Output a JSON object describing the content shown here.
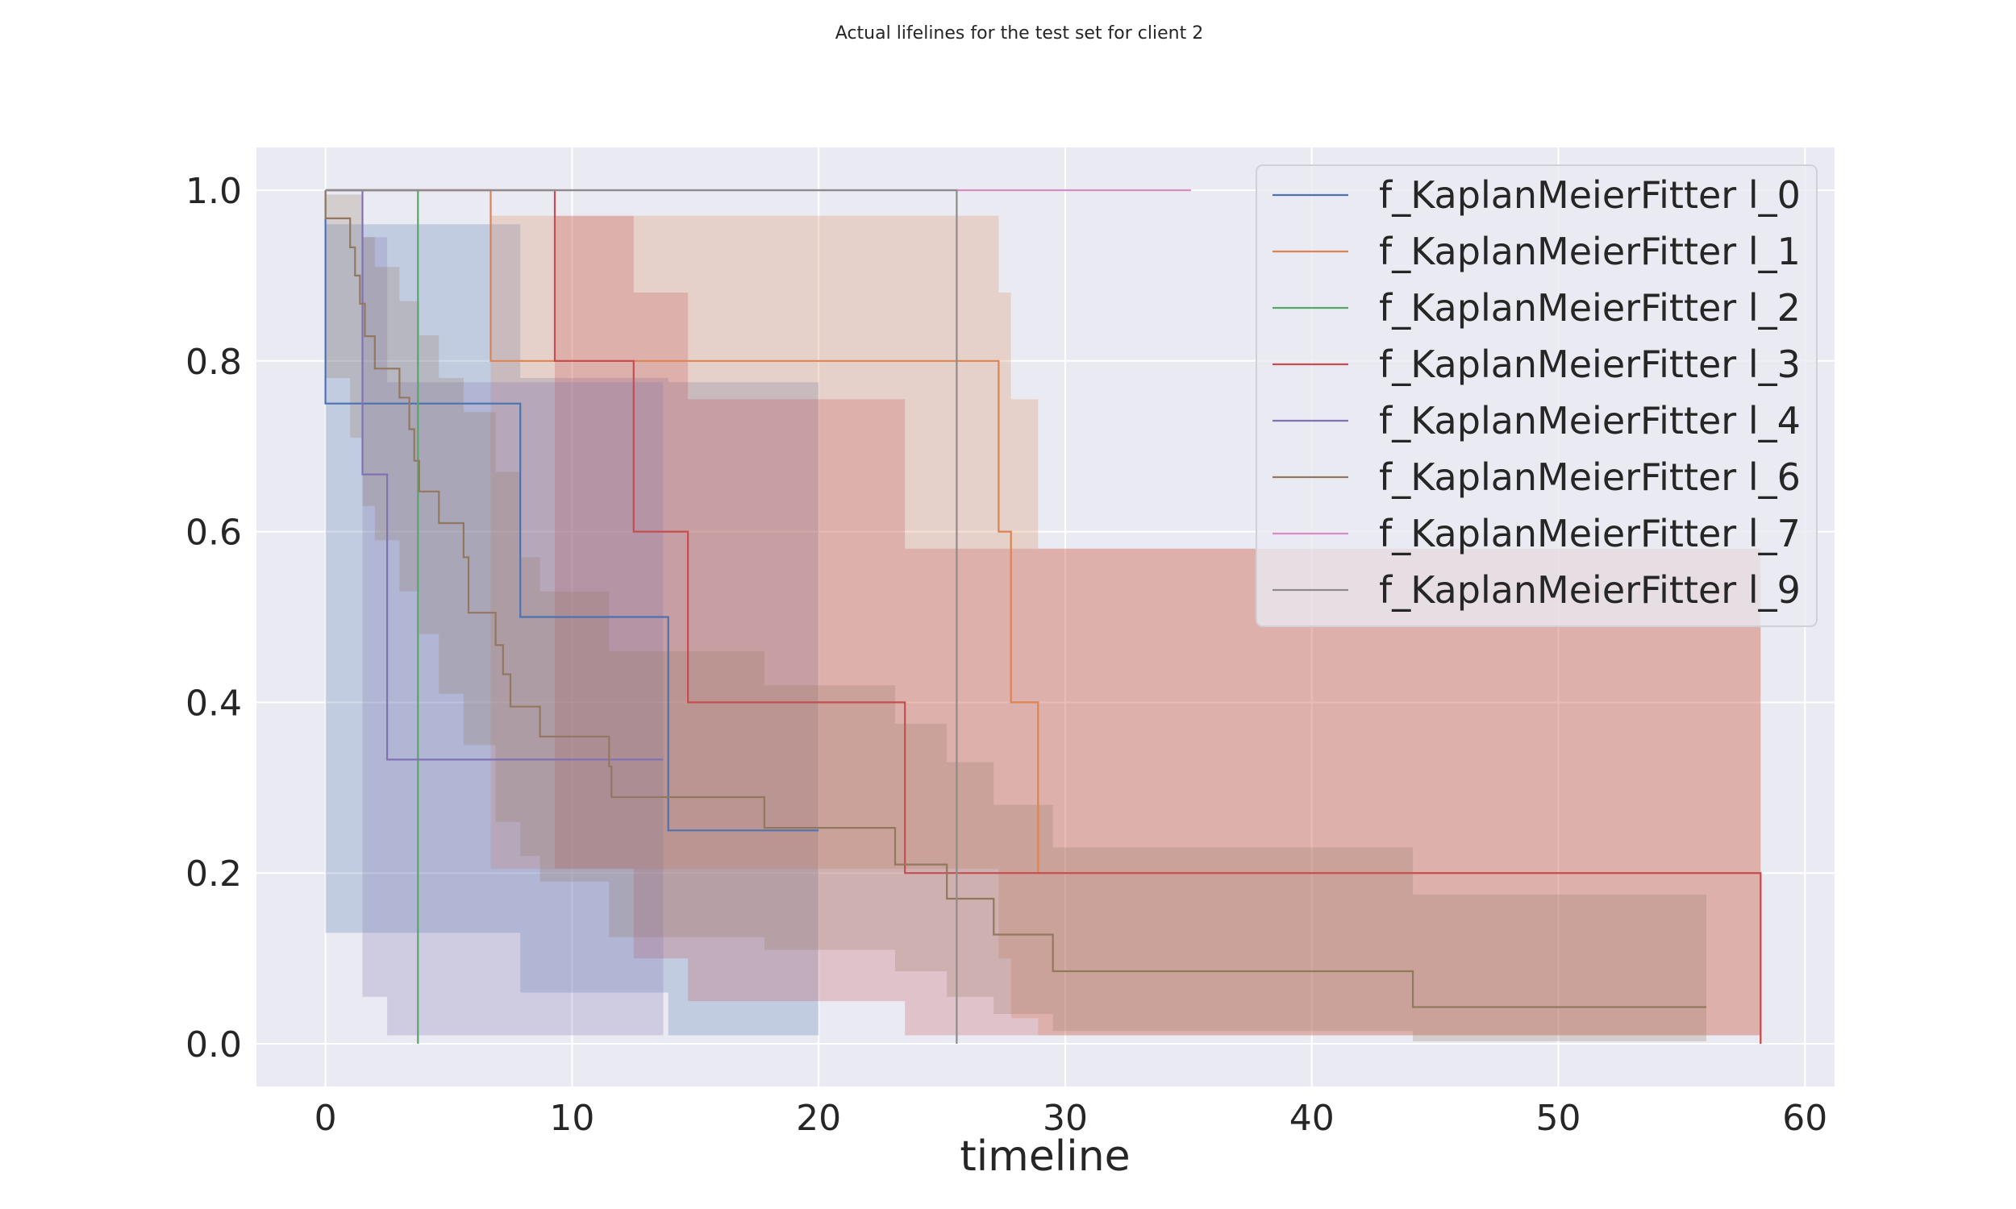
{
  "chart_data": {
    "type": "line",
    "title": "Actual lifelines for the test set for client 2",
    "xlabel": "timeline",
    "ylabel": "",
    "xlim": [
      -2.8,
      61.2
    ],
    "ylim": [
      -0.05,
      1.05
    ],
    "xticks": [
      0,
      10,
      20,
      30,
      40,
      50,
      60
    ],
    "yticks": [
      0.0,
      0.2,
      0.4,
      0.6,
      0.8,
      1.0
    ],
    "grid": true,
    "legend_position": "top-right",
    "series": [
      {
        "name": "f_KaplanMeierFitter l_0",
        "color": "#4c72b0",
        "points": [
          [
            0,
            1.0
          ],
          [
            0,
            0.75
          ],
          [
            7.9,
            0.75
          ],
          [
            7.9,
            0.5
          ],
          [
            13.9,
            0.5
          ],
          [
            13.9,
            0.25
          ],
          [
            20.0,
            0.25
          ]
        ],
        "ci_upper": [
          [
            0,
            0.96
          ],
          [
            7.9,
            0.96
          ],
          [
            7.9,
            0.78
          ],
          [
            13.9,
            0.78
          ],
          [
            13.9,
            0.775
          ],
          [
            20.0,
            0.775
          ]
        ],
        "ci_lower": [
          [
            0,
            0.13
          ],
          [
            7.9,
            0.13
          ],
          [
            7.9,
            0.06
          ],
          [
            13.9,
            0.06
          ],
          [
            13.9,
            0.01
          ],
          [
            20.0,
            0.01
          ]
        ]
      },
      {
        "name": "f_KaplanMeierFitter l_1",
        "color": "#dd8452",
        "points": [
          [
            0,
            1.0
          ],
          [
            6.7,
            1.0
          ],
          [
            6.7,
            0.8
          ],
          [
            27.3,
            0.8
          ],
          [
            27.3,
            0.6
          ],
          [
            27.8,
            0.6
          ],
          [
            27.8,
            0.4
          ],
          [
            28.9,
            0.4
          ],
          [
            28.9,
            0.2
          ],
          [
            58.2,
            0.2
          ],
          [
            58.2,
            0.0
          ]
        ],
        "ci_upper": [
          [
            6.7,
            0.97
          ],
          [
            27.3,
            0.97
          ],
          [
            27.3,
            0.88
          ],
          [
            27.8,
            0.88
          ],
          [
            27.8,
            0.755
          ],
          [
            28.9,
            0.755
          ],
          [
            28.9,
            0.58
          ],
          [
            58.2,
            0.58
          ]
        ],
        "ci_lower": [
          [
            6.7,
            0.205
          ],
          [
            27.3,
            0.205
          ],
          [
            27.3,
            0.1
          ],
          [
            27.8,
            0.1
          ],
          [
            27.8,
            0.03
          ],
          [
            28.9,
            0.03
          ],
          [
            28.9,
            0.01
          ],
          [
            58.2,
            0.01
          ]
        ]
      },
      {
        "name": "f_KaplanMeierFitter l_2",
        "color": "#55a868",
        "points": [
          [
            0,
            1.0
          ],
          [
            3.75,
            1.0
          ],
          [
            3.75,
            0.0
          ]
        ],
        "ci_upper": [],
        "ci_lower": []
      },
      {
        "name": "f_KaplanMeierFitter l_3",
        "color": "#c44e52",
        "points": [
          [
            0,
            1.0
          ],
          [
            9.3,
            1.0
          ],
          [
            9.3,
            0.8
          ],
          [
            12.5,
            0.8
          ],
          [
            12.5,
            0.6
          ],
          [
            14.7,
            0.6
          ],
          [
            14.7,
            0.4
          ],
          [
            23.5,
            0.4
          ],
          [
            23.5,
            0.2
          ],
          [
            58.2,
            0.2
          ],
          [
            58.2,
            0.0
          ]
        ],
        "ci_upper": [
          [
            9.3,
            0.97
          ],
          [
            12.5,
            0.97
          ],
          [
            12.5,
            0.88
          ],
          [
            14.7,
            0.88
          ],
          [
            14.7,
            0.755
          ],
          [
            23.5,
            0.755
          ],
          [
            23.5,
            0.58
          ],
          [
            58.2,
            0.58
          ]
        ],
        "ci_lower": [
          [
            9.3,
            0.205
          ],
          [
            12.5,
            0.205
          ],
          [
            12.5,
            0.1
          ],
          [
            14.7,
            0.1
          ],
          [
            14.7,
            0.05
          ],
          [
            23.5,
            0.05
          ],
          [
            23.5,
            0.01
          ],
          [
            58.2,
            0.01
          ]
        ]
      },
      {
        "name": "f_KaplanMeierFitter l_4",
        "color": "#8172b3",
        "points": [
          [
            0,
            1.0
          ],
          [
            1.5,
            1.0
          ],
          [
            1.5,
            0.667
          ],
          [
            2.5,
            0.667
          ],
          [
            2.5,
            0.333
          ],
          [
            13.7,
            0.333
          ]
        ],
        "ci_upper": [
          [
            1.5,
            0.945
          ],
          [
            2.5,
            0.945
          ],
          [
            2.5,
            0.775
          ],
          [
            13.7,
            0.775
          ]
        ],
        "ci_lower": [
          [
            1.5,
            0.055
          ],
          [
            2.5,
            0.055
          ],
          [
            2.5,
            0.01
          ],
          [
            13.7,
            0.01
          ]
        ]
      },
      {
        "name": "f_KaplanMeierFitter l_6",
        "color": "#937860",
        "points": [
          [
            0,
            1.0
          ],
          [
            0,
            0.967
          ],
          [
            1.0,
            0.967
          ],
          [
            1.0,
            0.933
          ],
          [
            1.2,
            0.933
          ],
          [
            1.2,
            0.9
          ],
          [
            1.4,
            0.9
          ],
          [
            1.4,
            0.867
          ],
          [
            1.6,
            0.867
          ],
          [
            1.6,
            0.829
          ],
          [
            2.0,
            0.829
          ],
          [
            2.0,
            0.791
          ],
          [
            3.0,
            0.791
          ],
          [
            3.0,
            0.757
          ],
          [
            3.4,
            0.757
          ],
          [
            3.4,
            0.72
          ],
          [
            3.6,
            0.72
          ],
          [
            3.6,
            0.683
          ],
          [
            3.8,
            0.683
          ],
          [
            3.8,
            0.647
          ],
          [
            4.6,
            0.647
          ],
          [
            4.6,
            0.61
          ],
          [
            5.6,
            0.61
          ],
          [
            5.6,
            0.57
          ],
          [
            5.8,
            0.57
          ],
          [
            5.8,
            0.505
          ],
          [
            6.9,
            0.505
          ],
          [
            6.9,
            0.467
          ],
          [
            7.2,
            0.467
          ],
          [
            7.2,
            0.433
          ],
          [
            7.5,
            0.433
          ],
          [
            7.5,
            0.395
          ],
          [
            8.7,
            0.395
          ],
          [
            8.7,
            0.36
          ],
          [
            11.5,
            0.36
          ],
          [
            11.5,
            0.325
          ],
          [
            11.6,
            0.325
          ],
          [
            11.6,
            0.289
          ],
          [
            17.8,
            0.289
          ],
          [
            17.8,
            0.253
          ],
          [
            23.1,
            0.253
          ],
          [
            23.1,
            0.21
          ],
          [
            25.2,
            0.21
          ],
          [
            25.2,
            0.17
          ],
          [
            27.1,
            0.17
          ],
          [
            27.1,
            0.128
          ],
          [
            29.5,
            0.128
          ],
          [
            29.5,
            0.085
          ],
          [
            44.1,
            0.085
          ],
          [
            44.1,
            0.043
          ],
          [
            56.0,
            0.043
          ]
        ],
        "ci_upper": [
          [
            0,
            0.995
          ],
          [
            1.0,
            0.995
          ],
          [
            1.5,
            0.945
          ],
          [
            2.0,
            0.91
          ],
          [
            3.0,
            0.87
          ],
          [
            3.8,
            0.83
          ],
          [
            4.6,
            0.78
          ],
          [
            5.6,
            0.74
          ],
          [
            6.9,
            0.67
          ],
          [
            7.9,
            0.57
          ],
          [
            8.7,
            0.53
          ],
          [
            11.5,
            0.46
          ],
          [
            17.8,
            0.42
          ],
          [
            23.1,
            0.375
          ],
          [
            25.2,
            0.33
          ],
          [
            27.1,
            0.28
          ],
          [
            29.5,
            0.23
          ],
          [
            44.1,
            0.175
          ],
          [
            56.0,
            0.175
          ]
        ],
        "ci_lower": [
          [
            0,
            0.78
          ],
          [
            1.0,
            0.71
          ],
          [
            1.5,
            0.63
          ],
          [
            2.0,
            0.59
          ],
          [
            3.0,
            0.53
          ],
          [
            3.8,
            0.48
          ],
          [
            4.6,
            0.41
          ],
          [
            5.6,
            0.35
          ],
          [
            6.9,
            0.26
          ],
          [
            7.9,
            0.22
          ],
          [
            8.7,
            0.19
          ],
          [
            11.5,
            0.125
          ],
          [
            17.8,
            0.11
          ],
          [
            23.1,
            0.085
          ],
          [
            25.2,
            0.055
          ],
          [
            27.1,
            0.035
          ],
          [
            29.5,
            0.015
          ],
          [
            44.1,
            0.003
          ],
          [
            56.0,
            0.003
          ]
        ]
      },
      {
        "name": "f_KaplanMeierFitter l_7",
        "color": "#da8bc3",
        "points": [
          [
            0,
            1.0
          ],
          [
            35.1,
            1.0
          ]
        ],
        "ci_upper": [],
        "ci_lower": []
      },
      {
        "name": "f_KaplanMeierFitter l_9",
        "color": "#8c8c8c",
        "points": [
          [
            0,
            1.0
          ],
          [
            25.6,
            1.0
          ],
          [
            25.6,
            0.0
          ]
        ],
        "ci_upper": [],
        "ci_lower": []
      }
    ]
  }
}
